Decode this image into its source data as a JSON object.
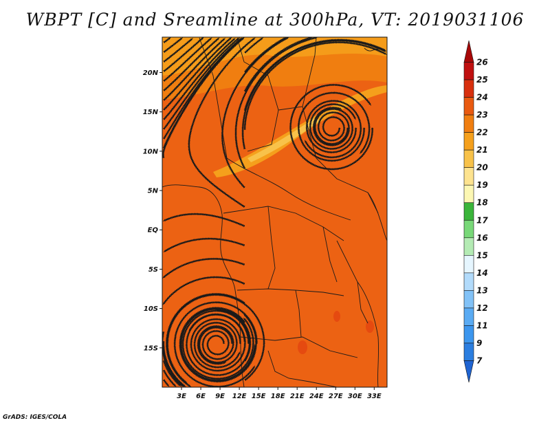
{
  "title": "WBPT [C] and Sreamline at 300hPa, VT: 2019031106",
  "footer": "GrADS: IGES/COLA",
  "map": {
    "lon_range": [
      0,
      35
    ],
    "lat_range": [
      -20,
      24.5
    ],
    "lat_ticks": [
      {
        "value": 20,
        "label": "20N"
      },
      {
        "value": 15,
        "label": "15N"
      },
      {
        "value": 10,
        "label": "10N"
      },
      {
        "value": 5,
        "label": "5N"
      },
      {
        "value": 0,
        "label": "EQ"
      },
      {
        "value": -5,
        "label": "5S"
      },
      {
        "value": -10,
        "label": "10S"
      },
      {
        "value": -15,
        "label": "15S"
      }
    ],
    "lon_ticks": [
      {
        "value": 3,
        "label": "3E"
      },
      {
        "value": 6,
        "label": "6E"
      },
      {
        "value": 9,
        "label": "9E"
      },
      {
        "value": 12,
        "label": "12E"
      },
      {
        "value": 15,
        "label": "15E"
      },
      {
        "value": 18,
        "label": "18E"
      },
      {
        "value": 21,
        "label": "21E"
      },
      {
        "value": 24,
        "label": "24E"
      },
      {
        "value": 27,
        "label": "27E"
      },
      {
        "value": 30,
        "label": "30E"
      },
      {
        "value": 33,
        "label": "33E"
      }
    ],
    "field_base_color": "#ec6213",
    "vortices": [
      {
        "name": "cyclonic-center-north",
        "lon": 26.5,
        "lat": 13.0
      },
      {
        "name": "anticyclone-center-south",
        "lon": 8.5,
        "lat": -14.5
      }
    ]
  },
  "colorbar": {
    "labels": [
      "7",
      "9",
      "11",
      "12",
      "13",
      "14",
      "15",
      "16",
      "17",
      "18",
      "19",
      "20",
      "21",
      "22",
      "23",
      "24",
      "25",
      "26"
    ],
    "colors": [
      "#1f64d2",
      "#2b7ee0",
      "#3c96ee",
      "#5aabf3",
      "#82c2f7",
      "#b2dbfb",
      "#e6f6ff",
      "#b4ebb4",
      "#78d878",
      "#3ab53a",
      "#fcf7b3",
      "#fde38f",
      "#f8c24a",
      "#f5a01c",
      "#f07e10",
      "#e95a10",
      "#d8300e",
      "#c01010",
      "#a80808"
    ]
  }
}
